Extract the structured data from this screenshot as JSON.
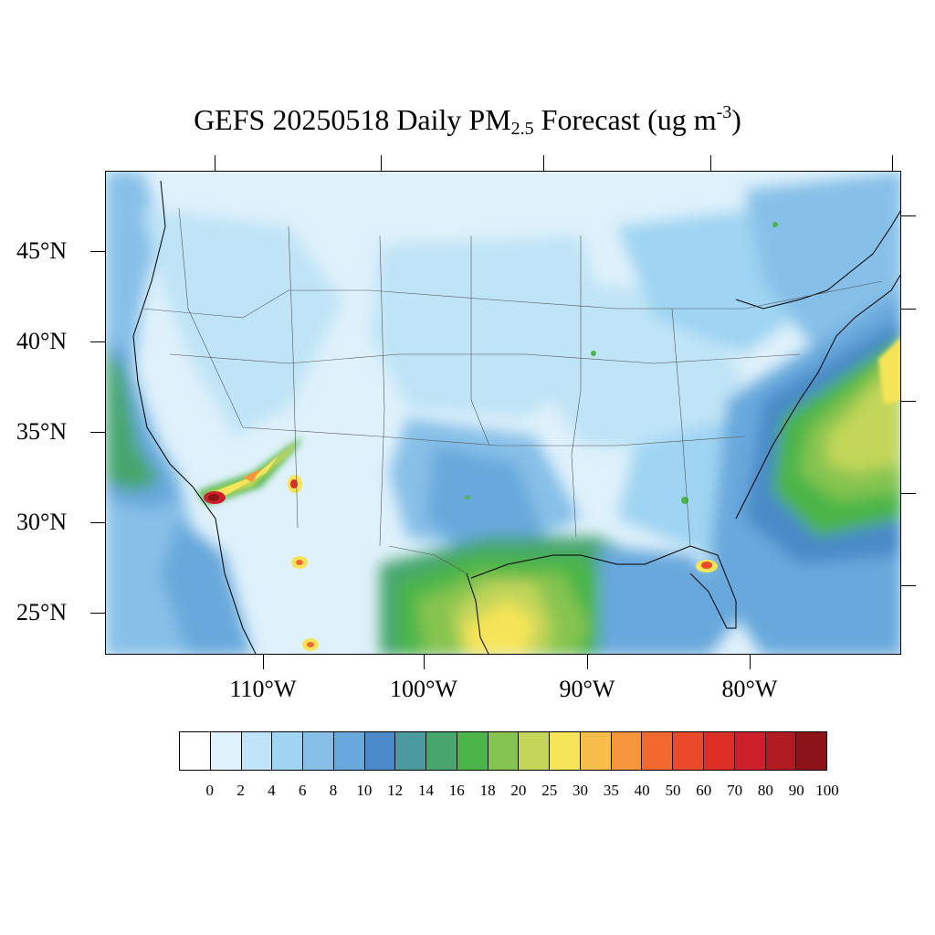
{
  "title": {
    "prefix": "GEFS 20250518 Daily PM",
    "subscript": "2.5",
    "middle": " Forecast (ug m",
    "superscript": "-3",
    "suffix": ")"
  },
  "map": {
    "region": "Contiguous United States",
    "lat_labels": [
      "45°N",
      "40°N",
      "35°N",
      "30°N",
      "25°N"
    ],
    "lon_labels": [
      "110°W",
      "100°W",
      "90°W",
      "80°W"
    ],
    "hotspots": [
      {
        "name": "Southern Arizona plume",
        "level": "60-100"
      },
      {
        "name": "Gila plume",
        "level": "40-70"
      },
      {
        "name": "Chihuahua fire",
        "level": "40-60"
      },
      {
        "name": "Durango fire",
        "level": "40-60"
      },
      {
        "name": "Central Florida fire",
        "level": "40-60"
      },
      {
        "name": "South Texas / Gulf",
        "level": "25-30"
      },
      {
        "name": "Atlantic offshore",
        "level": "20-30"
      }
    ]
  },
  "colorbar": {
    "labels": [
      "0",
      "2",
      "4",
      "6",
      "8",
      "10",
      "12",
      "14",
      "16",
      "18",
      "20",
      "25",
      "30",
      "35",
      "40",
      "50",
      "60",
      "70",
      "80",
      "90",
      "100"
    ],
    "colors": [
      "#ffffff",
      "#dff1fb",
      "#bfe4f7",
      "#9fd4f2",
      "#86c0e8",
      "#68a8dc",
      "#4a8ac8",
      "#4a9aa0",
      "#46a66e",
      "#4bb54a",
      "#86c450",
      "#c3d65a",
      "#f6e459",
      "#f7bd4a",
      "#f5963d",
      "#f06a30",
      "#e84a2a",
      "#dc3026",
      "#cc1f2a",
      "#b01b22",
      "#8c1418"
    ]
  }
}
